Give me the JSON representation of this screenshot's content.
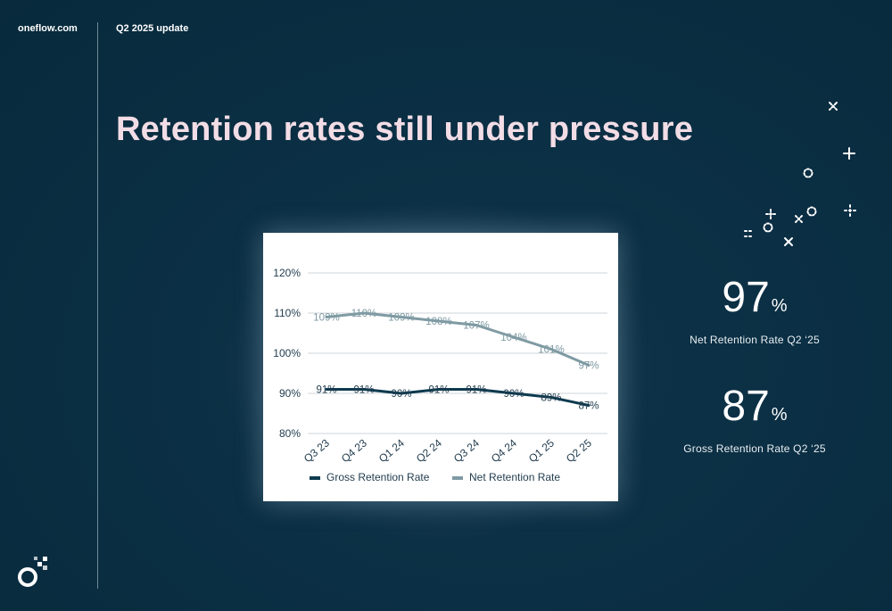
{
  "header": {
    "brand": "oneflow.com",
    "section": "Q2 2025 update"
  },
  "slide": {
    "title": "Retention rates still under pressure"
  },
  "stats": [
    {
      "value": "97",
      "unit": "%",
      "label": "Net Retention Rate Q2 ‘25"
    },
    {
      "value": "87",
      "unit": "%",
      "label": "Gross Retention Rate Q2 ‘25"
    }
  ],
  "icons": {
    "logo": "oneflow-logo-icon",
    "decoration": "sparkle-icon"
  },
  "colors": {
    "background": "#0b2f44",
    "title": "#f2dde6",
    "gross_series": "#0d3a4f",
    "net_series": "#7f9aa3"
  },
  "chart_data": {
    "type": "line",
    "categories": [
      "Q3 23",
      "Q4 23",
      "Q1 24",
      "Q2 24",
      "Q3 24",
      "Q4 24",
      "Q1 25",
      "Q2 25"
    ],
    "series": [
      {
        "name": "Gross Retention Rate",
        "values": [
          91,
          91,
          90,
          91,
          91,
          90,
          89,
          87
        ],
        "labels": [
          "91%",
          "91%",
          "90%",
          "91%",
          "91%",
          "90%",
          "89%",
          "87%"
        ]
      },
      {
        "name": "Net Retention Rate",
        "values": [
          109,
          110,
          109,
          108,
          107,
          104,
          101,
          97
        ],
        "labels": [
          "109%",
          "110%",
          "109%",
          "108%",
          "107%",
          "104%",
          "101%",
          "97%"
        ]
      }
    ],
    "ylim": [
      80,
      120
    ],
    "yticks": [
      "80%",
      "90%",
      "100%",
      "110%",
      "120%"
    ],
    "grid": true,
    "legend": "bottom"
  }
}
